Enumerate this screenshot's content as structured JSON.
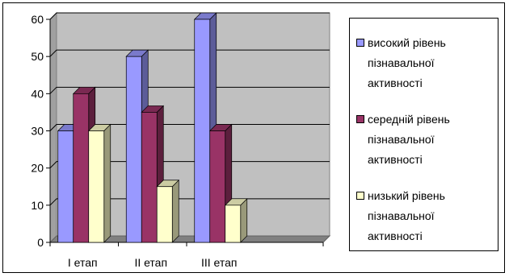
{
  "chart_data": {
    "type": "bar",
    "categories": [
      "I етап",
      "II етап",
      "III етап"
    ],
    "series": [
      {
        "name": "високий рівень пізнавальної активності",
        "values": [
          30,
          50,
          60
        ],
        "color": "#9999FF"
      },
      {
        "name": "середній рівень пізнавальної активності",
        "values": [
          40,
          35,
          30
        ],
        "color": "#993366"
      },
      {
        "name": "низький рівень пізнавальної активності",
        "values": [
          30,
          15,
          10
        ],
        "color": "#FFFFCC"
      }
    ],
    "title": "",
    "xlabel": "",
    "ylabel": "",
    "ylim": [
      0,
      60
    ],
    "yticks": [
      0,
      10,
      20,
      30,
      40,
      50,
      60
    ],
    "grid": true,
    "legend_position": "right",
    "style": "3d-clustered-column",
    "plot_background": "#C0C0C0"
  },
  "legend": {
    "items": [
      {
        "label": "високий рівень\nпізнавальної\nактивності"
      },
      {
        "label": "середній рівень\nпізнавальної\nактивності"
      },
      {
        "label": "низький рівень\nпізнавальної\nактивності"
      }
    ]
  }
}
